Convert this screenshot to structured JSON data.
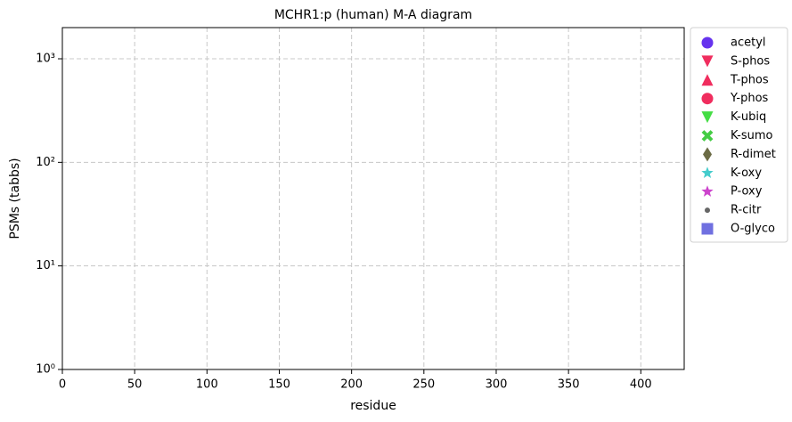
{
  "chart_data": {
    "type": "scatter",
    "title": "MCHR1:p (human) M-A diagram",
    "x_label": "residue",
    "y_label": "PSMs (tabbs)",
    "xlim": [
      0,
      430
    ],
    "xticks": [
      0,
      50,
      100,
      150,
      200,
      250,
      300,
      350,
      400
    ],
    "ylim": [
      1,
      2000
    ],
    "log_y": true,
    "yticks": [
      {
        "value": 1,
        "label": "10⁰"
      },
      {
        "value": 10,
        "label": "10¹"
      },
      {
        "value": 100,
        "label": "10²"
      },
      {
        "value": 1000,
        "label": "10³"
      }
    ],
    "grid": true,
    "legend_position": "outside-right",
    "series": [
      {
        "name": "acetyl",
        "color": "#6633ee",
        "marker": "circle",
        "x": [],
        "values": []
      },
      {
        "name": "S-phos",
        "color": "#f02d5e",
        "marker": "triangle-down",
        "x": [],
        "values": []
      },
      {
        "name": "T-phos",
        "color": "#f02d5e",
        "marker": "triangle-up",
        "x": [],
        "values": []
      },
      {
        "name": "Y-phos",
        "color": "#f02d5e",
        "marker": "circle",
        "x": [],
        "values": []
      },
      {
        "name": "K-ubiq",
        "color": "#44dd44",
        "marker": "triangle-down",
        "x": [],
        "values": []
      },
      {
        "name": "K-sumo",
        "color": "#44cc44",
        "marker": "x",
        "x": [],
        "values": []
      },
      {
        "name": "R-dimet",
        "color": "#6b6b45",
        "marker": "diamond",
        "x": [],
        "values": []
      },
      {
        "name": "K-oxy",
        "color": "#44cccc",
        "marker": "star",
        "x": [],
        "values": []
      },
      {
        "name": "P-oxy",
        "color": "#cc44cc",
        "marker": "star",
        "x": [],
        "values": []
      },
      {
        "name": "R-citr",
        "color": "#666666",
        "marker": "dot",
        "x": [],
        "values": []
      },
      {
        "name": "O-glyco",
        "color": "#7070e0",
        "marker": "square",
        "x": [],
        "values": []
      }
    ]
  }
}
